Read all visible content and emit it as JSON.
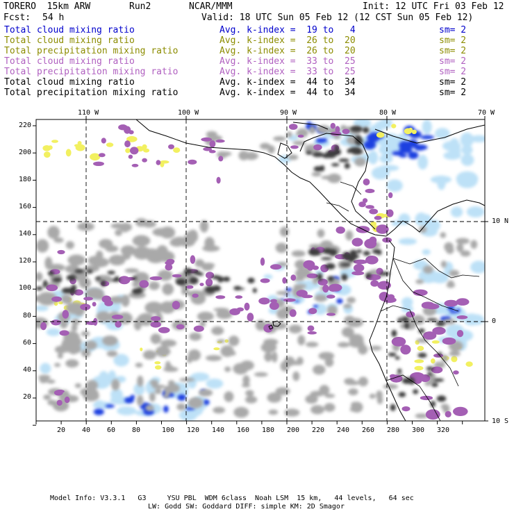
{
  "header": {
    "model": "TORERO  15km ARW",
    "run": "Run2",
    "center": "NCAR/MMM",
    "init": "Init: 12 UTC Fri 03 Feb 12",
    "fcst_label": "Fcst:",
    "fcst_hours": "54 h",
    "valid": "Valid: 18 UTC Sun 05 Feb 12 (12 CST Sun 05 Feb 12)"
  },
  "legend": [
    {
      "field": "Total cloud mixing ratio",
      "kindex": "Avg. k-index =  19 to   4",
      "sm": "sm= 2",
      "color": "#0000cc"
    },
    {
      "field": "Total cloud mixing ratio",
      "kindex": "Avg. k-index =  26 to  20",
      "sm": "sm= 2",
      "color": "#8c8c00"
    },
    {
      "field": "Total precipitation mixing ratio",
      "kindex": "Avg. k-index =  26 to  20",
      "sm": "sm= 2",
      "color": "#8c8c00"
    },
    {
      "field": "Total cloud mixing ratio",
      "kindex": "Avg. k-index =  33 to  25",
      "sm": "sm= 2",
      "color": "#b060c0"
    },
    {
      "field": "Total precipitation mixing ratio",
      "kindex": "Avg. k-index =  33 to  25",
      "sm": "sm= 2",
      "color": "#b060c0"
    },
    {
      "field": "Total cloud mixing ratio",
      "kindex": "Avg. k-index =  44 to  34",
      "sm": "sm= 2",
      "color": "#000000"
    },
    {
      "field": "Total precipitation mixing ratio",
      "kindex": "Avg. k-index =  44 to  34",
      "sm": "sm= 2",
      "color": "#000000"
    }
  ],
  "axes": {
    "top_lon_labels": [
      "110 W",
      "100 W",
      "90 W",
      "80 W",
      "70 W"
    ],
    "right_lat_labels": [
      "10 N",
      "0",
      "10 S"
    ],
    "left_y_ticks": [
      "220",
      "200",
      "180",
      "160",
      "140",
      "120",
      "100",
      "80",
      "60",
      "40",
      "20"
    ],
    "bottom_x_ticks": [
      "20",
      "40",
      "60",
      "80",
      "100",
      "120",
      "140",
      "160",
      "180",
      "200",
      "220",
      "240",
      "260",
      "280",
      "300",
      "320"
    ]
  },
  "footer": {
    "line1": "Model Info: V3.3.1   G3     YSU PBL  WDM 6class  Noah LSM  15 km,   44 levels,   64 sec",
    "line2": "LW: Godd SW: Goddard DIFF: simple KM: 2D Smagor"
  },
  "colors": {
    "gray": "#a9a9a9",
    "dark": "#3c3c3c",
    "purple": "#a45fb4",
    "yellow": "#f2f060",
    "blue": "#1f3fe0",
    "lightblue": "#bde1f7"
  }
}
